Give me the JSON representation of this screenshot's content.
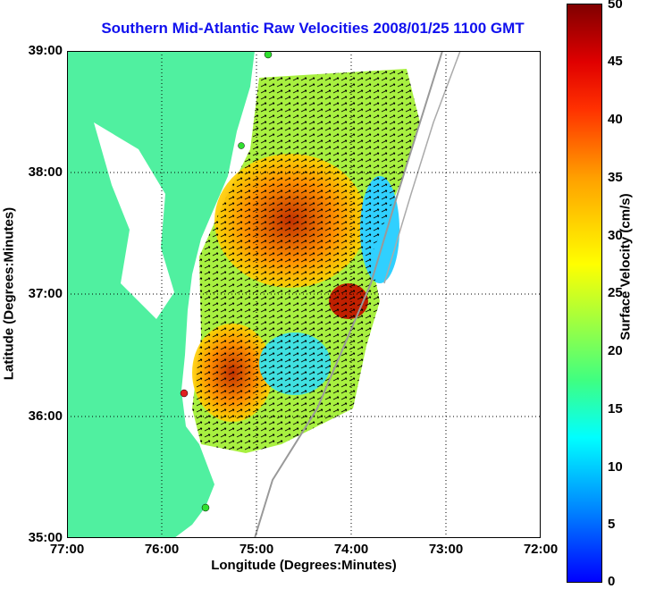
{
  "title": "Southern Mid-Atlantic Raw Velocities 2008/01/25 1100 GMT",
  "axes": {
    "xlabel": "Longitude (Degrees:Minutes)",
    "ylabel": "Latitude (Degrees:Minutes)",
    "xticks": [
      "77:00",
      "76:00",
      "75:00",
      "74:00",
      "73:00",
      "72:00"
    ],
    "yticks": [
      "39:00",
      "38:00",
      "37:00",
      "36:00",
      "35:00"
    ]
  },
  "colorbar": {
    "label": "Surface Velocity (cm/s)",
    "ticks": [
      "50",
      "45",
      "40",
      "35",
      "30",
      "25",
      "20",
      "15",
      "10",
      "5",
      "0"
    ],
    "range": [
      0,
      50
    ]
  },
  "colors": {
    "land": "#50f0a0",
    "title": "#1010ee"
  }
}
